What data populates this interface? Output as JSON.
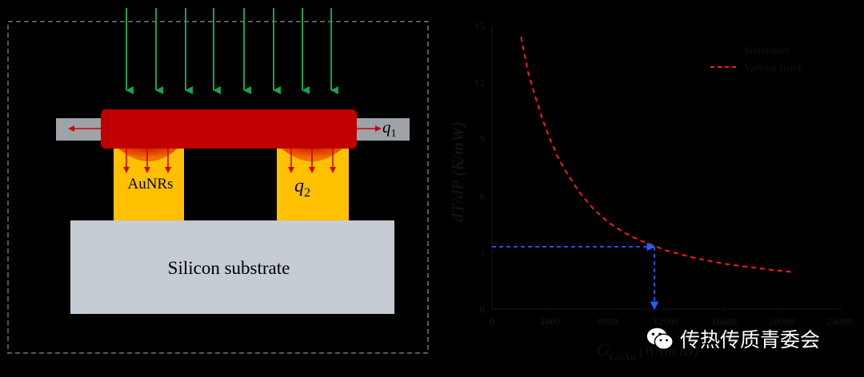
{
  "diagram": {
    "labels": {
      "aunrs": "AuNRs",
      "q1_base": "q",
      "q1_sub": "1",
      "q2_base": "q",
      "q2_sub": "2",
      "substrate": "Silicon substrate"
    },
    "colors": {
      "laser_arrow": "#16a34a",
      "heater": "#c00000",
      "pillar": "#ffc000",
      "substrate": "#c5ccd3",
      "side_bar": "#9ea3a8",
      "heat_arrow": "#d40000"
    }
  },
  "chart_data": {
    "type": "line",
    "title": "",
    "xlabel": "G",
    "xlabel_sub": "Cr/Au",
    "xlabel_unit": "(W/(m·K))",
    "ylabel": "dT/dP (K/mW)",
    "xlim": [
      0,
      24000
    ],
    "ylim": [
      0,
      15
    ],
    "x_ticks": [
      "0",
      "4000",
      "8000",
      "12000",
      "16000",
      "20000",
      "24000"
    ],
    "y_ticks": [
      "0",
      "3",
      "6",
      "9",
      "12",
      "15"
    ],
    "legend": {
      "title": "Simulation",
      "entry": "Varying fiand."
    },
    "series": [
      {
        "name": "Varying fiand.",
        "style": "dashed",
        "color": "#ff1a1a",
        "x": [
          2000,
          2500,
          3000,
          3500,
          4000,
          4500,
          5000,
          6000,
          7000,
          8000,
          9000,
          10000,
          11000,
          12000,
          13000,
          14000,
          15000,
          16000,
          17000,
          18000,
          19000,
          20000,
          20800
        ],
        "y": [
          14.4,
          12.5,
          11.2,
          10.0,
          9.0,
          8.1,
          7.4,
          6.2,
          5.3,
          4.6,
          4.1,
          3.7,
          3.4,
          3.1,
          2.9,
          2.7,
          2.55,
          2.4,
          2.3,
          2.2,
          2.1,
          2.02,
          1.95
        ]
      }
    ],
    "guide": {
      "x": 11200,
      "y": 3.3,
      "color": "#2060ff"
    }
  },
  "watermark": {
    "text": "传热传质青委会"
  }
}
